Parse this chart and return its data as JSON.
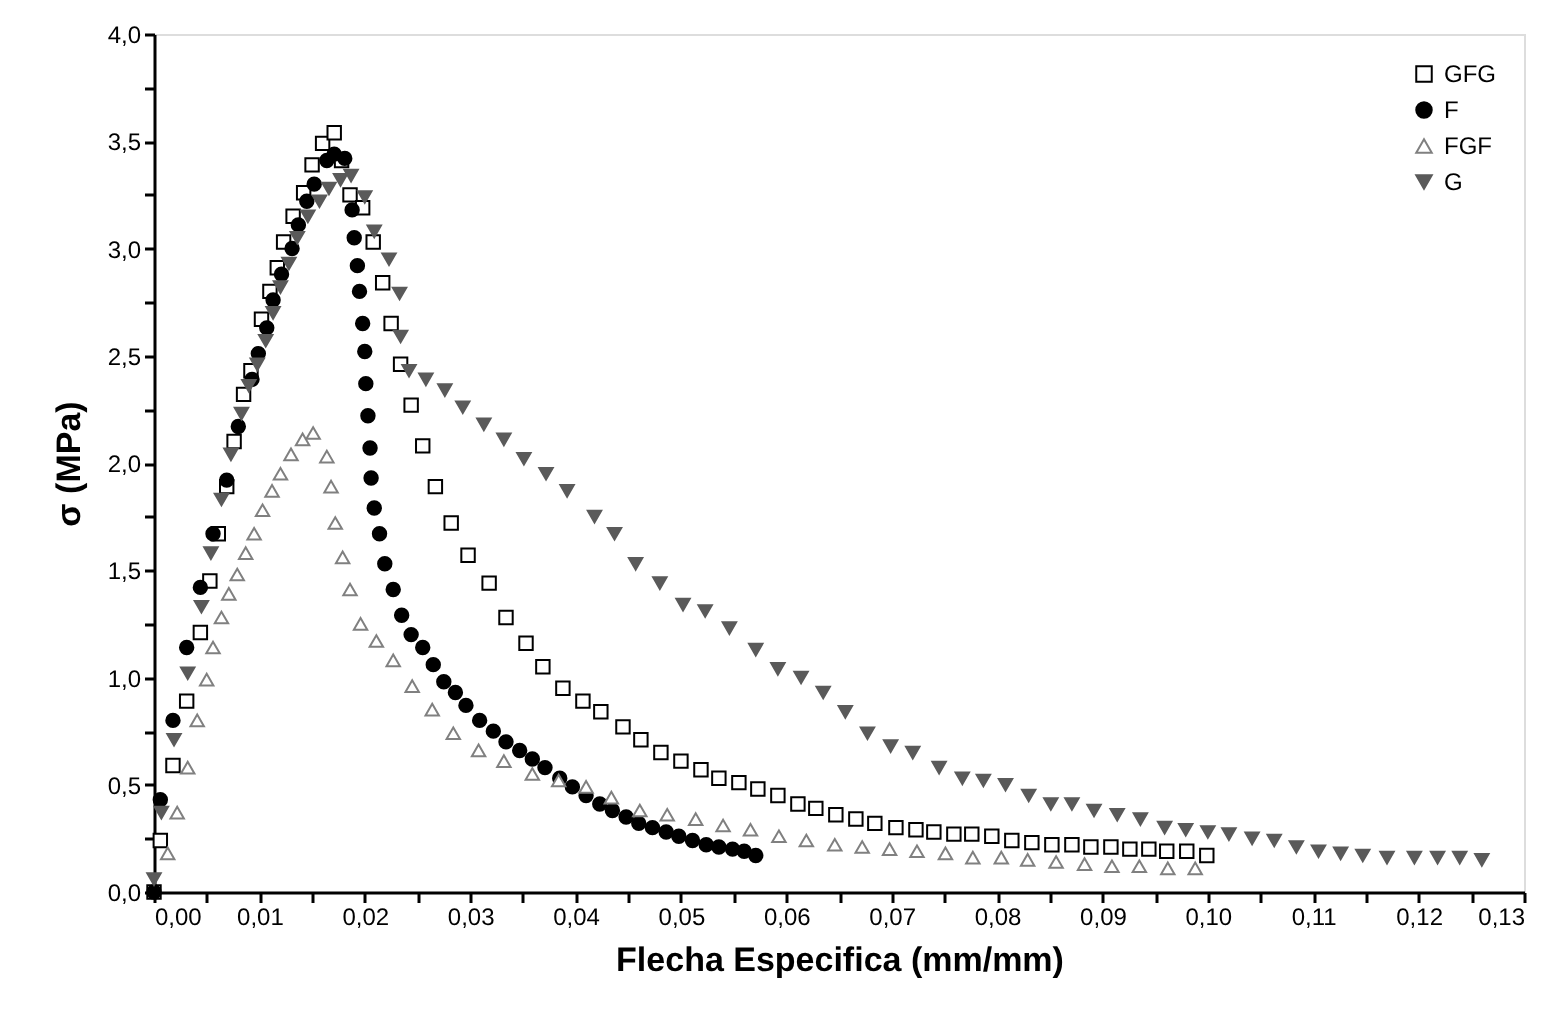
{
  "chart_data": {
    "type": "scatter",
    "xlabel": "Flecha Especifica (mm/mm)",
    "ylabel": "σ (MPa)",
    "xlim": [
      0,
      0.13
    ],
    "ylim": [
      0,
      4.0
    ],
    "xticks": [
      {
        "value": 0,
        "label": "0,00"
      },
      {
        "value": 0.005,
        "label": null
      },
      {
        "value": 0.01,
        "label": "0,01"
      },
      {
        "value": 0.015,
        "label": null
      },
      {
        "value": 0.02,
        "label": "0,02"
      },
      {
        "value": 0.025,
        "label": null
      },
      {
        "value": 0.03,
        "label": "0,03"
      },
      {
        "value": 0.035,
        "label": null
      },
      {
        "value": 0.04,
        "label": "0,04"
      },
      {
        "value": 0.045,
        "label": null
      },
      {
        "value": 0.05,
        "label": "0,05"
      },
      {
        "value": 0.055,
        "label": null
      },
      {
        "value": 0.06,
        "label": "0,06"
      },
      {
        "value": 0.065,
        "label": null
      },
      {
        "value": 0.07,
        "label": "0,07"
      },
      {
        "value": 0.075,
        "label": null
      },
      {
        "value": 0.08,
        "label": "0,08"
      },
      {
        "value": 0.085,
        "label": null
      },
      {
        "value": 0.09,
        "label": "0,09"
      },
      {
        "value": 0.095,
        "label": null
      },
      {
        "value": 0.1,
        "label": "0,10"
      },
      {
        "value": 0.105,
        "label": null
      },
      {
        "value": 0.11,
        "label": "0,11"
      },
      {
        "value": 0.115,
        "label": null
      },
      {
        "value": 0.12,
        "label": "0,12"
      },
      {
        "value": 0.125,
        "label": null
      },
      {
        "value": 0.13,
        "label": "0,13"
      }
    ],
    "yticks": [
      {
        "value": 0,
        "label": "0,0"
      },
      {
        "value": 0.25,
        "label": null
      },
      {
        "value": 0.5,
        "label": "0,5"
      },
      {
        "value": 0.75,
        "label": null
      },
      {
        "value": 1.0,
        "label": "1,0"
      },
      {
        "value": 1.25,
        "label": null
      },
      {
        "value": 1.5,
        "label": "1,5"
      },
      {
        "value": 1.75,
        "label": null
      },
      {
        "value": 2.0,
        "label": "2,0"
      },
      {
        "value": 2.25,
        "label": null
      },
      {
        "value": 2.5,
        "label": "2,5"
      },
      {
        "value": 2.75,
        "label": null
      },
      {
        "value": 3.0,
        "label": "3,0"
      },
      {
        "value": 3.25,
        "label": null
      },
      {
        "value": 3.5,
        "label": "3,5"
      },
      {
        "value": 3.75,
        "label": null
      },
      {
        "value": 4.0,
        "label": "4,0"
      }
    ],
    "grid": false,
    "legend": "top right",
    "series": [
      {
        "name": "GFG",
        "color": "#000000",
        "marker": "square",
        "x": [
          0,
          0.0006,
          0.0018,
          0.0031,
          0.0044,
          0.0053,
          0.0061,
          0.0069,
          0.0076,
          0.0085,
          0.0092,
          0.0102,
          0.011,
          0.0117,
          0.0123,
          0.0132,
          0.0142,
          0.015,
          0.016,
          0.0171,
          0.0178,
          0.0186,
          0.0198,
          0.0208,
          0.0217,
          0.0225,
          0.0234,
          0.0244,
          0.0255,
          0.0267,
          0.0282,
          0.0298,
          0.0318,
          0.0334,
          0.0353,
          0.0369,
          0.0388,
          0.0407,
          0.0424,
          0.0445,
          0.0462,
          0.0481,
          0.05,
          0.0519,
          0.0536,
          0.0555,
          0.0573,
          0.0592,
          0.0611,
          0.0628,
          0.0647,
          0.0666,
          0.0684,
          0.0704,
          0.0723,
          0.074,
          0.0759,
          0.0776,
          0.0795,
          0.0814,
          0.0833,
          0.0852,
          0.0871,
          0.0889,
          0.0908,
          0.0926,
          0.0944,
          0.0961,
          0.098,
          0.0999
        ],
        "values": [
          0,
          0.24,
          0.59,
          0.89,
          1.21,
          1.45,
          1.67,
          1.89,
          2.1,
          2.32,
          2.43,
          2.67,
          2.8,
          2.91,
          3.03,
          3.15,
          3.26,
          3.39,
          3.49,
          3.54,
          3.41,
          3.25,
          3.19,
          3.03,
          2.84,
          2.65,
          2.46,
          2.27,
          2.08,
          1.89,
          1.72,
          1.57,
          1.44,
          1.28,
          1.16,
          1.05,
          0.95,
          0.89,
          0.84,
          0.77,
          0.71,
          0.65,
          0.61,
          0.57,
          0.53,
          0.51,
          0.48,
          0.45,
          0.41,
          0.39,
          0.36,
          0.34,
          0.32,
          0.3,
          0.29,
          0.28,
          0.27,
          0.27,
          0.26,
          0.24,
          0.23,
          0.22,
          0.22,
          0.21,
          0.21,
          0.2,
          0.2,
          0.19,
          0.19,
          0.17
        ]
      },
      {
        "name": "F",
        "color": "#000000",
        "marker": "circle",
        "x": [
          0,
          0.0006,
          0.0018,
          0.0031,
          0.0044,
          0.0056,
          0.0069,
          0.008,
          0.0093,
          0.0099,
          0.0107,
          0.0113,
          0.0121,
          0.0131,
          0.0137,
          0.0145,
          0.0152,
          0.0164,
          0.0171,
          0.0181,
          0.0188,
          0.019,
          0.0193,
          0.0195,
          0.0198,
          0.02,
          0.0201,
          0.0203,
          0.0205,
          0.0206,
          0.0209,
          0.0214,
          0.0219,
          0.0227,
          0.0235,
          0.0244,
          0.0255,
          0.0265,
          0.0275,
          0.0286,
          0.0296,
          0.0309,
          0.0322,
          0.0334,
          0.0347,
          0.0359,
          0.0371,
          0.0385,
          0.0397,
          0.041,
          0.0423,
          0.0435,
          0.0448,
          0.046,
          0.0473,
          0.0486,
          0.0498,
          0.0511,
          0.0524,
          0.0536,
          0.0549,
          0.056,
          0.0571
        ],
        "values": [
          0,
          0.43,
          0.8,
          1.14,
          1.42,
          1.67,
          1.92,
          2.17,
          2.39,
          2.51,
          2.63,
          2.76,
          2.88,
          3.0,
          3.11,
          3.22,
          3.3,
          3.41,
          3.44,
          3.42,
          3.18,
          3.05,
          2.92,
          2.8,
          2.65,
          2.52,
          2.37,
          2.22,
          2.07,
          1.93,
          1.79,
          1.67,
          1.53,
          1.41,
          1.29,
          1.2,
          1.14,
          1.06,
          0.98,
          0.93,
          0.87,
          0.8,
          0.75,
          0.7,
          0.66,
          0.62,
          0.58,
          0.53,
          0.49,
          0.45,
          0.41,
          0.38,
          0.35,
          0.32,
          0.3,
          0.28,
          0.26,
          0.24,
          0.22,
          0.21,
          0.2,
          0.19,
          0.17
        ]
      },
      {
        "name": "FGF",
        "color": "#808080",
        "marker": "triangle",
        "x": [
          0.0013,
          0.0022,
          0.0032,
          0.0041,
          0.005,
          0.0056,
          0.0064,
          0.0071,
          0.0079,
          0.0087,
          0.0095,
          0.0103,
          0.0112,
          0.012,
          0.013,
          0.0141,
          0.0151,
          0.0164,
          0.0168,
          0.0172,
          0.0179,
          0.0186,
          0.0196,
          0.0211,
          0.0227,
          0.0245,
          0.0264,
          0.0284,
          0.0308,
          0.0332,
          0.0359,
          0.0384,
          0.041,
          0.0434,
          0.0461,
          0.0487,
          0.0514,
          0.054,
          0.0566,
          0.0593,
          0.0619,
          0.0646,
          0.0672,
          0.0698,
          0.0724,
          0.0751,
          0.0777,
          0.0804,
          0.0829,
          0.0856,
          0.0883,
          0.0909,
          0.0935,
          0.0962,
          0.0988
        ],
        "values": [
          0.18,
          0.37,
          0.58,
          0.8,
          0.99,
          1.14,
          1.28,
          1.39,
          1.48,
          1.58,
          1.67,
          1.78,
          1.87,
          1.95,
          2.04,
          2.11,
          2.14,
          2.03,
          1.89,
          1.72,
          1.56,
          1.41,
          1.25,
          1.17,
          1.08,
          0.96,
          0.85,
          0.74,
          0.66,
          0.61,
          0.55,
          0.52,
          0.49,
          0.44,
          0.38,
          0.36,
          0.34,
          0.31,
          0.29,
          0.26,
          0.24,
          0.22,
          0.21,
          0.2,
          0.19,
          0.18,
          0.16,
          0.16,
          0.15,
          0.14,
          0.13,
          0.12,
          0.12,
          0.11,
          0.11
        ]
      },
      {
        "name": "G",
        "color": "#5a5a5a",
        "marker": "triangle-down",
        "x": [
          0,
          0.0007,
          0.0019,
          0.0032,
          0.0045,
          0.0054,
          0.0064,
          0.0073,
          0.0083,
          0.009,
          0.0098,
          0.0106,
          0.0113,
          0.012,
          0.0128,
          0.0136,
          0.0146,
          0.0157,
          0.0166,
          0.0177,
          0.0187,
          0.02,
          0.0209,
          0.0223,
          0.0233,
          0.0234,
          0.0242,
          0.0258,
          0.0276,
          0.0293,
          0.0313,
          0.0332,
          0.0351,
          0.0372,
          0.0392,
          0.0418,
          0.0437,
          0.0457,
          0.048,
          0.0502,
          0.0523,
          0.0546,
          0.0571,
          0.0592,
          0.0614,
          0.0635,
          0.0656,
          0.0677,
          0.0699,
          0.072,
          0.0745,
          0.0767,
          0.0787,
          0.0808,
          0.083,
          0.0851,
          0.0871,
          0.0892,
          0.0914,
          0.0936,
          0.0959,
          0.0979,
          0.1,
          0.102,
          0.1042,
          0.1063,
          0.1084,
          0.1105,
          0.1126,
          0.1147,
          0.117,
          0.1196,
          0.1218,
          0.1239,
          0.126
        ],
        "values": [
          0.06,
          0.37,
          0.71,
          1.02,
          1.33,
          1.58,
          1.83,
          2.04,
          2.23,
          2.36,
          2.46,
          2.57,
          2.7,
          2.82,
          2.93,
          3.05,
          3.15,
          3.22,
          3.28,
          3.32,
          3.34,
          3.24,
          3.08,
          2.95,
          2.79,
          2.59,
          2.43,
          2.39,
          2.34,
          2.26,
          2.18,
          2.11,
          2.02,
          1.95,
          1.87,
          1.75,
          1.67,
          1.53,
          1.44,
          1.34,
          1.31,
          1.23,
          1.13,
          1.04,
          1.0,
          0.93,
          0.84,
          0.74,
          0.68,
          0.65,
          0.58,
          0.53,
          0.52,
          0.5,
          0.45,
          0.41,
          0.41,
          0.38,
          0.36,
          0.34,
          0.3,
          0.29,
          0.28,
          0.27,
          0.25,
          0.24,
          0.21,
          0.19,
          0.18,
          0.17,
          0.16,
          0.16,
          0.16,
          0.16,
          0.15
        ]
      }
    ]
  }
}
